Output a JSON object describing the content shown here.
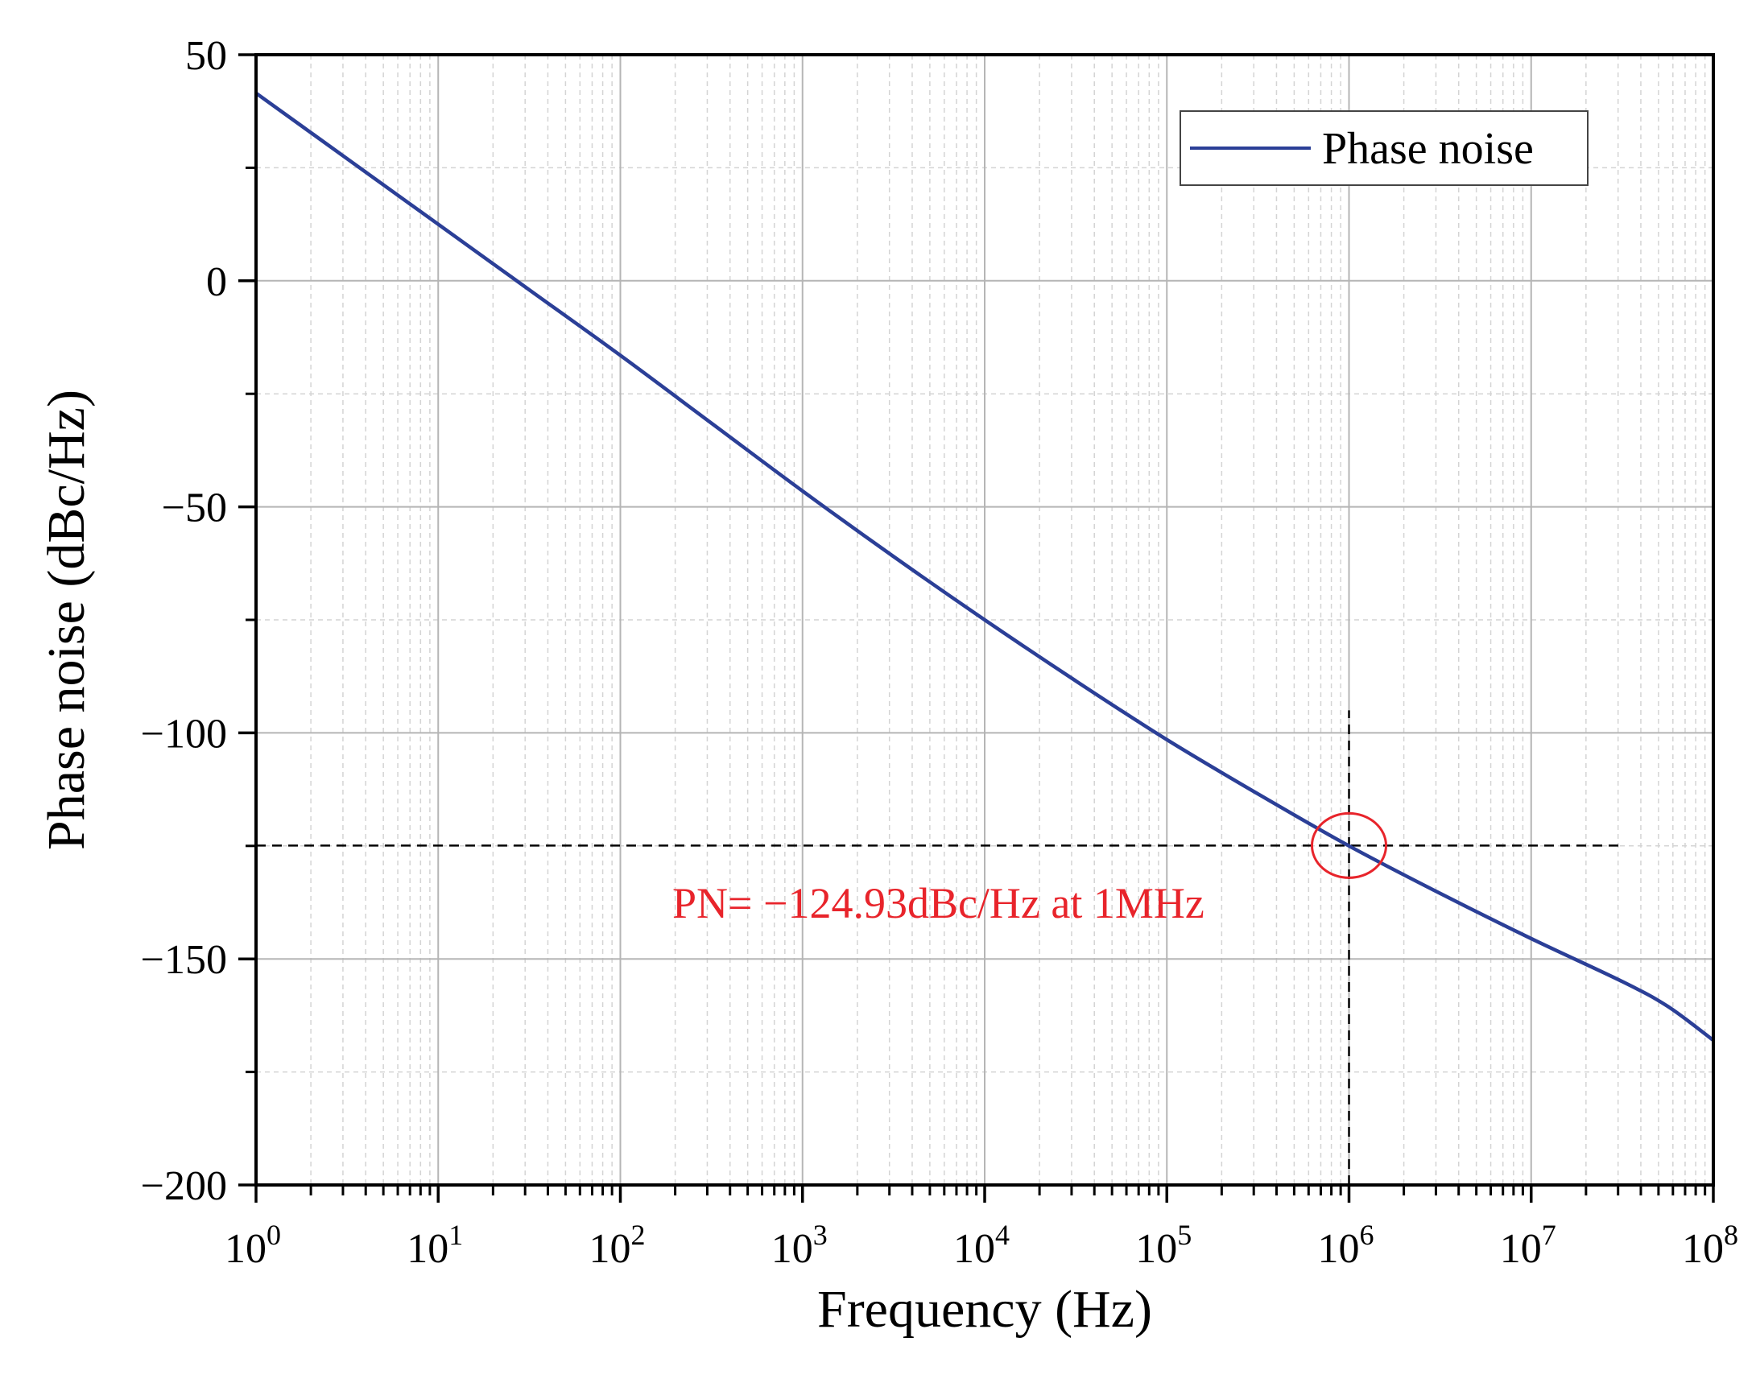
{
  "chart_data": {
    "type": "line",
    "title": "",
    "xlabel": "Frequency (Hz)",
    "ylabel": "Phase noise (dBc/Hz)",
    "xscale": "log",
    "xlim": [
      1,
      100000000
    ],
    "ylim": [
      -200,
      50
    ],
    "yticks": [
      50,
      0,
      -50,
      -100,
      -150,
      -200
    ],
    "ytick_labels": [
      "50",
      "0",
      "−50",
      "−100",
      "−150",
      "−200"
    ],
    "xtick_exponents": [
      "0",
      "1",
      "2",
      "3",
      "4",
      "5",
      "6",
      "7",
      "8"
    ],
    "xtick_base": "10",
    "grid": true,
    "legend_position": "top-right",
    "series": [
      {
        "name": "Phase noise",
        "color": "#2b3f97",
        "x_log10": [
          0,
          0.5,
          1,
          1.5,
          2,
          2.5,
          3,
          3.5,
          4,
          4.5,
          5,
          5.5,
          6,
          6.5,
          7,
          7.5,
          7.75,
          8
        ],
        "y": [
          41.5,
          27,
          12.5,
          -2,
          -16.5,
          -31.5,
          -46.5,
          -61,
          -75,
          -88.5,
          -101.5,
          -113.5,
          -125,
          -135.5,
          -145.5,
          -155,
          -160.5,
          -168
        ]
      }
    ],
    "annotation": {
      "text": "PN= −124.93dBc/Hz at 1MHz",
      "color": "#e8242b",
      "point_x_log10": 6,
      "point_y": -124.93,
      "hline_x_log10_range": [
        0,
        7.5
      ],
      "vline_y_range": [
        -200,
        -95
      ]
    }
  }
}
